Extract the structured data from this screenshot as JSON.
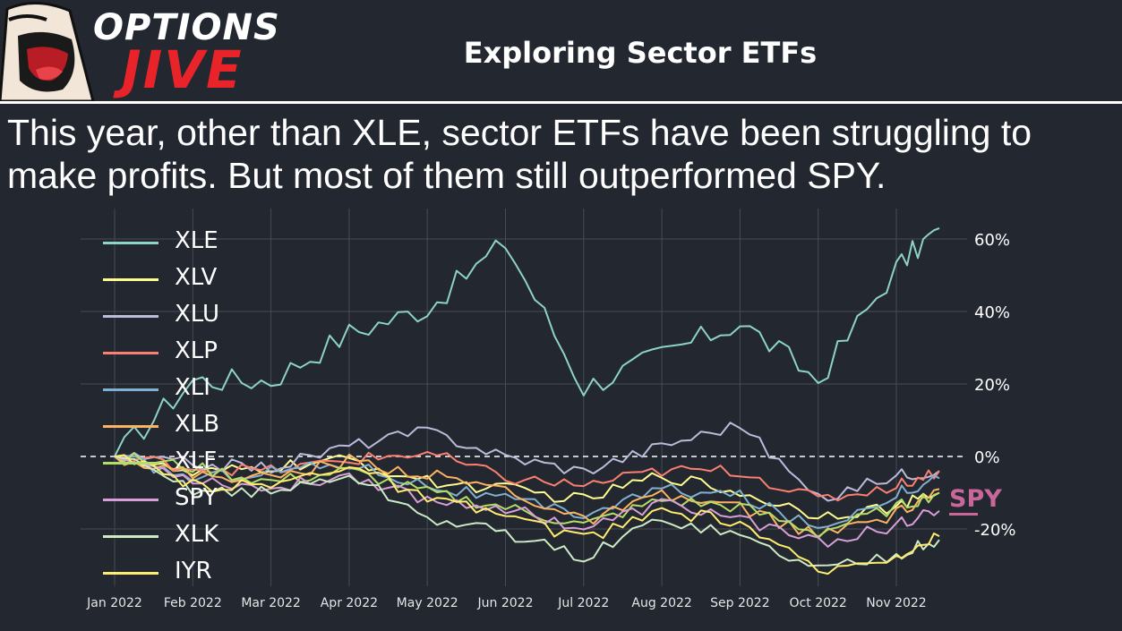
{
  "header": {
    "logo_line1": "OPTIONS",
    "logo_line2": "JIVE",
    "title": "Exploring Sector ETFs"
  },
  "subtitle_line1": "This year, other than XLE, sector ETFs have been struggling to",
  "subtitle_line2": "make profits. But most of them still outperformed SPY.",
  "spy_annotation": "SPY",
  "colors": {
    "background": "#232730",
    "grid": "#474b55",
    "logo_red": "#e8232a",
    "spy_annotation": "#c9679a"
  },
  "chart_data": {
    "type": "line",
    "title": "",
    "xlabel": "",
    "ylabel": "",
    "x_ticks": [
      "Jan 2022",
      "Feb 2022",
      "Mar 2022",
      "Apr 2022",
      "May 2022",
      "Jun 2022",
      "Jul 2022",
      "Aug 2022",
      "Sep 2022",
      "Oct 2022",
      "Nov 2022"
    ],
    "y_ticks": [
      "60%",
      "40%",
      "20%",
      "0%",
      "-20%"
    ],
    "y_tick_values": [
      60,
      40,
      20,
      0,
      -20
    ],
    "ylim": [
      -35,
      64
    ],
    "y_axis_side": "right",
    "grid": true,
    "legend_position": "upper-left",
    "zero_line": "dashed",
    "x_months": [
      0,
      1,
      2,
      3,
      4,
      5,
      6,
      7,
      8,
      9,
      10,
      10.55
    ],
    "series": [
      {
        "name": "XLE",
        "color": "#8dd3c7",
        "values": [
          0,
          21,
          21,
          34,
          41,
          59,
          19,
          28,
          37,
          21,
          52,
          63
        ]
      },
      {
        "name": "XLV",
        "color": "#fefc8f",
        "values": [
          0,
          -5,
          -3,
          -1,
          -7,
          -9,
          -12,
          -5,
          -10,
          -16,
          -14,
          -10
        ]
      },
      {
        "name": "XLU",
        "color": "#bebada",
        "values": [
          0,
          -2,
          -3,
          3,
          7,
          0,
          -4,
          3,
          9,
          -12,
          -5,
          -4
        ]
      },
      {
        "name": "XLP",
        "color": "#fb8072",
        "values": [
          0,
          -3,
          -4,
          -1,
          1,
          -6,
          -8,
          -4,
          -4,
          -12,
          -8,
          -4
        ]
      },
      {
        "name": "XLI",
        "color": "#80b1d3",
        "values": [
          0,
          -6,
          -4,
          -2,
          -8,
          -12,
          -16,
          -9,
          -11,
          -20,
          -10,
          -6
        ]
      },
      {
        "name": "XLB",
        "color": "#fdb462",
        "values": [
          0,
          -5,
          -6,
          -1,
          -5,
          -9,
          -18,
          -11,
          -14,
          -22,
          -16,
          -9
        ]
      },
      {
        "name": "XLF",
        "color": "#b3de69",
        "values": [
          0,
          -3,
          -7,
          -4,
          -10,
          -14,
          -19,
          -12,
          -14,
          -21,
          -14,
          -10
        ]
      },
      {
        "name": "SPY",
        "color": "#d99fd8",
        "values": [
          0,
          -6,
          -9,
          -5,
          -12,
          -14,
          -20,
          -13,
          -17,
          -24,
          -19,
          -15
        ]
      },
      {
        "name": "XLK",
        "color": "#ccebc5",
        "values": [
          0,
          -9,
          -10,
          -5,
          -17,
          -21,
          -28,
          -17,
          -22,
          -31,
          -27,
          -23
        ]
      },
      {
        "name": "IYR",
        "color": "#ffed6f",
        "values": [
          0,
          -8,
          -8,
          -2,
          -12,
          -16,
          -23,
          -15,
          -18,
          -32,
          -27,
          -22
        ]
      }
    ]
  }
}
